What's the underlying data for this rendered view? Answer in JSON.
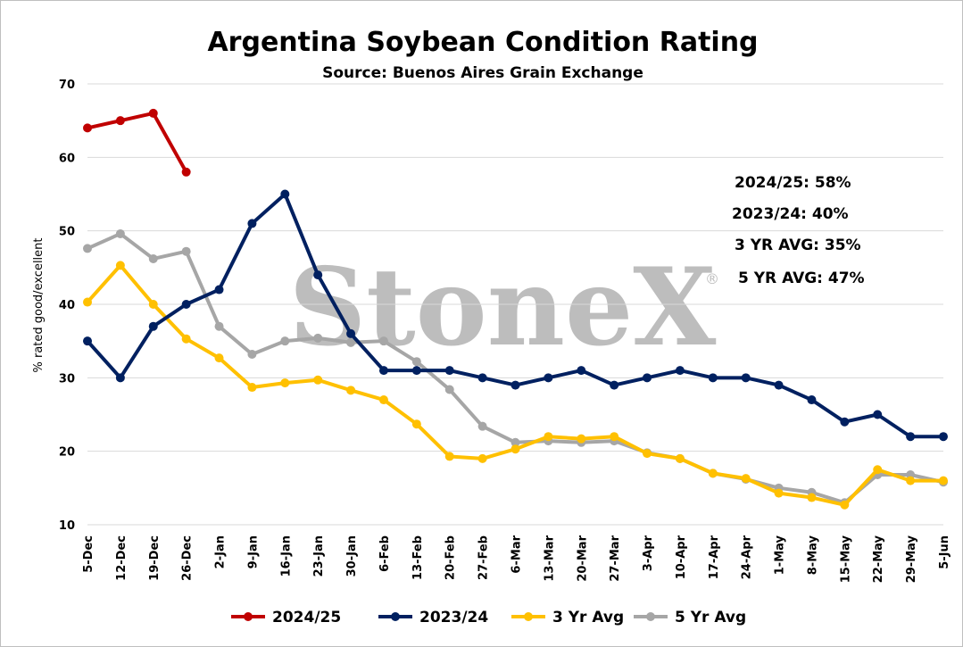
{
  "chart_data": {
    "type": "line",
    "title": "Argentina Soybean Condition Rating",
    "subtitle": "Source: Buenos Aires Grain Exchange",
    "ylabel": "% rated good/excellent",
    "xlabel": "",
    "ylim": [
      10,
      70
    ],
    "yticks": [
      10,
      20,
      30,
      40,
      50,
      60,
      70
    ],
    "grid": "horizontal",
    "legend_position": "bottom",
    "categories": [
      "5-Dec",
      "12-Dec",
      "19-Dec",
      "26-Dec",
      "2-Jan",
      "9-Jan",
      "16-Jan",
      "23-Jan",
      "30-Jan",
      "6-Feb",
      "13-Feb",
      "20-Feb",
      "27-Feb",
      "6-Mar",
      "13-Mar",
      "20-Mar",
      "27-Mar",
      "3-Apr",
      "10-Apr",
      "17-Apr",
      "24-Apr",
      "1-May",
      "8-May",
      "15-May",
      "22-May",
      "29-May",
      "5-Jun"
    ],
    "series": [
      {
        "name": "2024/25",
        "color": "#c00000",
        "values": [
          64,
          65,
          66,
          58,
          null,
          null,
          null,
          null,
          null,
          null,
          null,
          null,
          null,
          null,
          null,
          null,
          null,
          null,
          null,
          null,
          null,
          null,
          null,
          null,
          null,
          null,
          null
        ]
      },
      {
        "name": "2023/24",
        "color": "#002060",
        "values": [
          35,
          30,
          37,
          40,
          42,
          51,
          55,
          44,
          36,
          31,
          31,
          31,
          30,
          29,
          30,
          31,
          29,
          30,
          31,
          30,
          30,
          29,
          27,
          24,
          25,
          22,
          22
        ]
      },
      {
        "name": "3 Yr Avg",
        "color": "#ffc000",
        "values": [
          40.3,
          45.3,
          40,
          35.3,
          32.7,
          28.7,
          29.3,
          29.7,
          28.3,
          27,
          23.7,
          19.3,
          19,
          20.3,
          22,
          21.7,
          22,
          19.7,
          19,
          17,
          16.3,
          14.3,
          13.7,
          12.7,
          17.5,
          16,
          16
        ]
      },
      {
        "name": "5 Yr Avg",
        "color": "#a6a6a6",
        "values": [
          47.6,
          49.6,
          46.2,
          47.2,
          37,
          33.2,
          35,
          35.4,
          34.8,
          35,
          32.2,
          28.4,
          23.4,
          21.2,
          21.4,
          21.2,
          21.4,
          19.8,
          19,
          17,
          16.2,
          15,
          14.4,
          13,
          16.8,
          16.8,
          15.8
        ]
      }
    ],
    "annotations": [
      "2024/25: 58%",
      "2023/24: 40%",
      "3 YR AVG: 35%",
      "5 YR AVG: 47%"
    ],
    "watermark": {
      "text": "StoneX",
      "mark": "®"
    }
  }
}
